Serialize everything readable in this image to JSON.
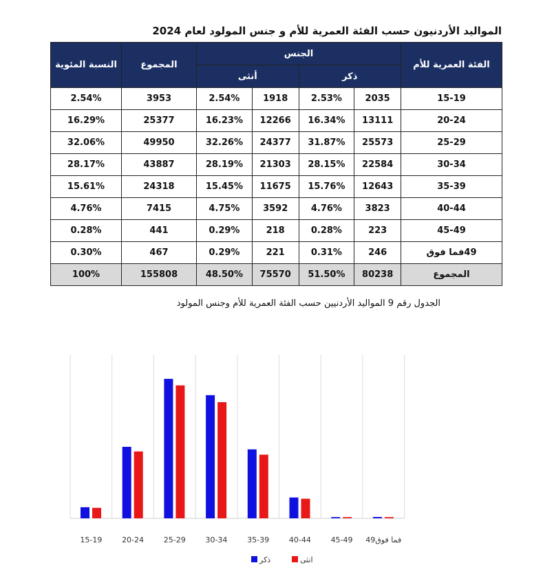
{
  "title": "المواليد الأردنيون حسب الفئة العمرية للأم  و جنس المولود لعام 2024",
  "table": {
    "headers": {
      "age": "الفئة العمرية للأم",
      "sex": "الجنس",
      "male": "ذكر",
      "female": "أنثى",
      "total": "المجموع",
      "percent": "النسبة المئوية"
    },
    "rows": [
      [
        "15-19",
        "2035",
        "2.53%",
        "1918",
        "2.54%",
        "3953",
        "2.54%"
      ],
      [
        "20-24",
        "13111",
        "16.34%",
        "12266",
        "16.23%",
        "25377",
        "16.29%"
      ],
      [
        "25-29",
        "25573",
        "31.87%",
        "24377",
        "32.26%",
        "49950",
        "32.06%"
      ],
      [
        "30-34",
        "22584",
        "28.15%",
        "21303",
        "28.19%",
        "43887",
        "28.17%"
      ],
      [
        "35-39",
        "12643",
        "15.76%",
        "11675",
        "15.45%",
        "24318",
        "15.61%"
      ],
      [
        "40-44",
        "3823",
        "4.76%",
        "3592",
        "4.75%",
        "7415",
        "4.76%"
      ],
      [
        "45-49",
        "223",
        "0.28%",
        "218",
        "0.29%",
        "441",
        "0.28%"
      ],
      [
        "49فما فوق",
        "246",
        "0.31%",
        "221",
        "0.29%",
        "467",
        "0.30%"
      ],
      [
        "المجموع",
        "80238",
        "51.50%",
        "75570",
        "48.50%",
        "155808",
        "100%"
      ]
    ]
  },
  "caption": "الجدول رقم  9 المواليد الأردنيين حسب الفئة العمرية للأم وجنس المولود",
  "chart_data": {
    "type": "bar",
    "categories": [
      "15-19",
      "20-24",
      "25-29",
      "30-34",
      "35-39",
      "40-44",
      "45-49",
      "49فما فوق"
    ],
    "series": [
      {
        "name": "ذكر",
        "color": "#1010e0",
        "values": [
          2035,
          13111,
          25573,
          22584,
          12643,
          3823,
          223,
          246
        ]
      },
      {
        "name": "انثى",
        "color": "#e81818",
        "values": [
          1918,
          12266,
          24377,
          21303,
          11675,
          3592,
          218,
          221
        ]
      }
    ],
    "ylim": [
      0,
      30000
    ],
    "grid": "vertical",
    "legend": "bottom-center"
  }
}
